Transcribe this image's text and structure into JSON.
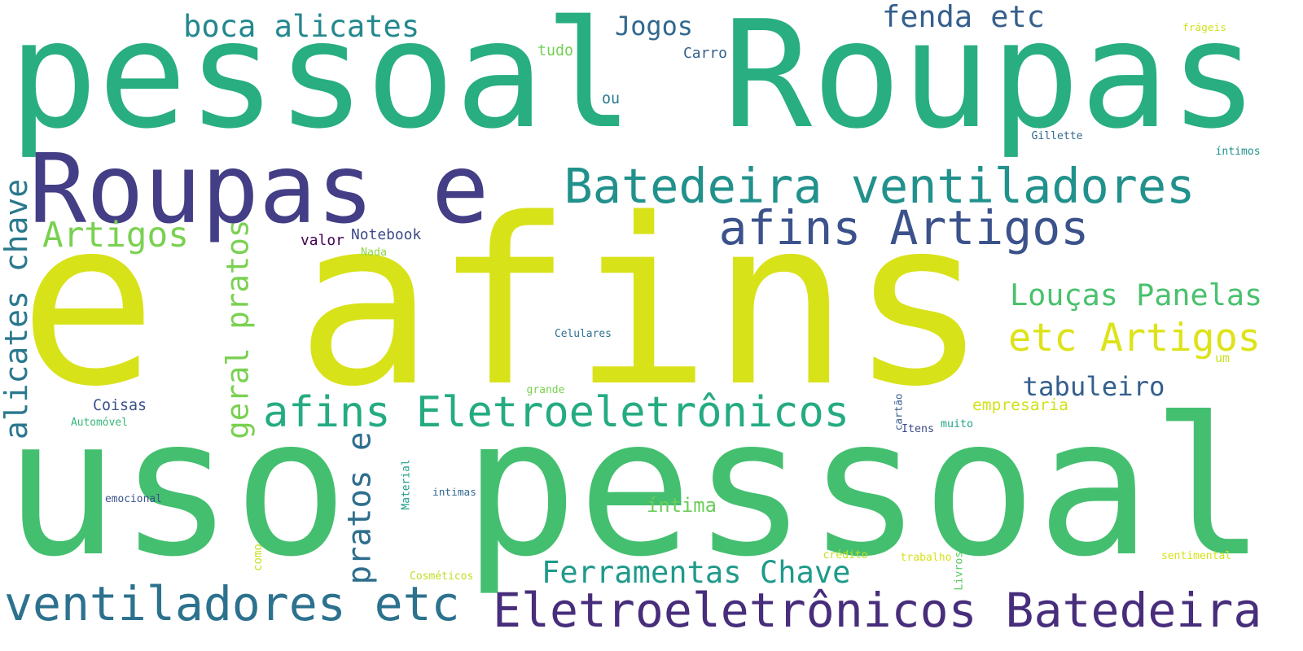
{
  "words": [
    {
      "text": "e afins",
      "color": "#d8e219"
    },
    {
      "text": "pessoal Roupas",
      "color": "#28ae80"
    },
    {
      "text": "uso pessoal",
      "color": "#44bf70"
    },
    {
      "text": "Roupas e",
      "color": "#433e85"
    },
    {
      "text": "Batedeira ventiladores",
      "color": "#21918c"
    },
    {
      "text": "afins Artigos",
      "color": "#3b528b"
    },
    {
      "text": "Eletroeletrônicos Batedeira",
      "color": "#472d7b"
    },
    {
      "text": "ventiladores etc",
      "color": "#2c728e"
    },
    {
      "text": "afins Eletroeletrônicos",
      "color": "#25ab82"
    },
    {
      "text": "etc Artigos",
      "color": "#dde318"
    },
    {
      "text": "Louças Panelas",
      "color": "#4ac16d"
    },
    {
      "text": "Ferramentas Chave",
      "color": "#1f9a8a"
    },
    {
      "text": "alicates chave",
      "color": "#2a788e"
    },
    {
      "text": "boca alicates",
      "color": "#23888e"
    },
    {
      "text": "pratos e",
      "color": "#2e6e8e"
    },
    {
      "text": "geral pratos",
      "color": "#7ad151"
    },
    {
      "text": "Artigos",
      "color": "#7ad151"
    },
    {
      "text": "fenda etc",
      "color": "#355f8d"
    },
    {
      "text": "Jogos",
      "color": "#31688e"
    },
    {
      "text": "tabuleiro",
      "color": "#345f8d"
    },
    {
      "text": "íntima",
      "color": "#6ccd5a"
    },
    {
      "text": "Notebook",
      "color": "#3e4a89"
    },
    {
      "text": "valor",
      "color": "#440154"
    },
    {
      "text": "Coisas",
      "color": "#3b528b"
    },
    {
      "text": "Carro",
      "color": "#355f8d"
    },
    {
      "text": "tudo",
      "color": "#73d056"
    },
    {
      "text": "ou",
      "color": "#2a788e"
    },
    {
      "text": "Celulares",
      "color": "#2c728e"
    },
    {
      "text": "Gillette",
      "color": "#31688e"
    },
    {
      "text": "íntimos",
      "color": "#21918c"
    },
    {
      "text": "frágeis",
      "color": "#d0e11c"
    },
    {
      "text": "Nada",
      "color": "#8ed645"
    },
    {
      "text": "grande",
      "color": "#7ad151"
    },
    {
      "text": "empresaria",
      "color": "#d2e21b"
    },
    {
      "text": "um",
      "color": "#cae11f"
    },
    {
      "text": "Itens",
      "color": "#3e4989"
    },
    {
      "text": "muito",
      "color": "#22a785"
    },
    {
      "text": "cartão",
      "color": "#365c8d"
    },
    {
      "text": "Automóvel",
      "color": "#35b779"
    },
    {
      "text": "emocional",
      "color": "#3b528b"
    },
    {
      "text": "intimas",
      "color": "#31688e"
    },
    {
      "text": "Material",
      "color": "#1f9e89"
    },
    {
      "text": "como",
      "color": "#c8e020"
    },
    {
      "text": "Cosméticos",
      "color": "#bddf26"
    },
    {
      "text": "crédito",
      "color": "#c2df23"
    },
    {
      "text": "trabalho",
      "color": "#d8e219"
    },
    {
      "text": "Livros",
      "color": "#5ec962"
    },
    {
      "text": "sentimental",
      "color": "#d5e21a"
    }
  ]
}
